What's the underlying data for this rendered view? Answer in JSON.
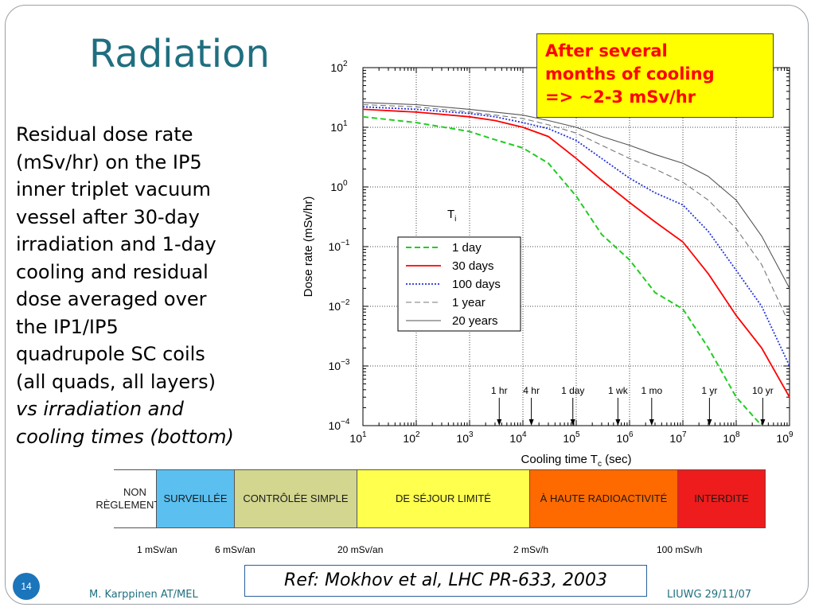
{
  "slide": {
    "title": "Radiation",
    "body_lines": [
      "Residual dose rate",
      "(mSv/hr) on the IP5",
      "inner triplet vacuum",
      "vessel after 30-day",
      "irradiation and 1-day",
      "cooling and residual",
      "dose averaged over",
      "the IP1/IP5",
      "quadrupole SC coils",
      "(all quads, all layers)"
    ],
    "body_italic_lines": [
      "vs irradiation and",
      "cooling times (bottom)"
    ],
    "callout_lines": [
      "After several",
      "months of cooling",
      "=> ~2-3 mSv/hr"
    ],
    "reference": "Ref: Mokhov et al, LHC PR-633, 2003",
    "page_number": "14",
    "footer_left": "M. Karppinen AT/MEL",
    "footer_right": "LIUWG 29/11/07",
    "colors": {
      "title": "#1f6f80",
      "callout_bg": "#ffff00",
      "callout_text": "#ff0000"
    }
  },
  "zones": [
    {
      "label_lines": [
        "NON",
        "RÈGLEMENTÉE"
      ],
      "color": "#ffffff"
    },
    {
      "label_lines": [
        "SURVEILLÉE"
      ],
      "color": "#5bc0f0"
    },
    {
      "label_lines": [
        "CONTRÔLÉE SIMPLE"
      ],
      "color": "#d2d68f"
    },
    {
      "label_lines": [
        "DE SÉJOUR LIMITÉ"
      ],
      "color": "#ffff4d"
    },
    {
      "label_lines": [
        "À HAUTE RADIOACTIVITÉ"
      ],
      "color": "#ff6a00"
    },
    {
      "label_lines": [
        "INTERDITE"
      ],
      "color": "#ee1c1c"
    }
  ],
  "thresholds": [
    "1 mSv/an",
    "6 mSv/an",
    "20 mSv/an",
    "2 mSv/h",
    "100 mSv/h"
  ],
  "chart_data": {
    "type": "line",
    "xlabel_main": "Cooling time T",
    "xlabel_sub": "c",
    "xlabel_unit": " (sec)",
    "ylabel": "Dose rate (mSv/hr)",
    "x_scale": "log",
    "y_scale": "log",
    "xlim": [
      10,
      1000000000
    ],
    "ylim": [
      0.0001,
      100
    ],
    "grid": true,
    "x_ticks": [
      {
        "base": "10",
        "exp": "1"
      },
      {
        "base": "10",
        "exp": "2"
      },
      {
        "base": "10",
        "exp": "3"
      },
      {
        "base": "10",
        "exp": "4"
      },
      {
        "base": "10",
        "exp": "5"
      },
      {
        "base": "10",
        "exp": "6"
      },
      {
        "base": "10",
        "exp": "7"
      },
      {
        "base": "10",
        "exp": "8"
      },
      {
        "base": "10",
        "exp": "9"
      }
    ],
    "y_ticks": [
      {
        "base": "10",
        "exp": "−4"
      },
      {
        "base": "10",
        "exp": "−3"
      },
      {
        "base": "10",
        "exp": "−2"
      },
      {
        "base": "10",
        "exp": "−1"
      },
      {
        "base": "10",
        "exp": "0"
      },
      {
        "base": "10",
        "exp": "1"
      },
      {
        "base": "10",
        "exp": "2"
      }
    ],
    "legend_title_main": "T",
    "legend_title_sub": "i",
    "legend_position": "center",
    "series": [
      {
        "name": "1 day",
        "color": "#22cc22",
        "dash": "dashed",
        "x": [
          10,
          100,
          1000,
          3000,
          10000,
          30000,
          100000,
          300000,
          1000000,
          3000000,
          10000000,
          30000000,
          100000000,
          300000000
        ],
        "y": [
          15,
          12,
          8.5,
          6.2,
          4.5,
          2.5,
          0.7,
          0.16,
          0.06,
          0.017,
          0.009,
          0.002,
          0.0003,
          0.0001
        ]
      },
      {
        "name": "30 days",
        "color": "#ff0000",
        "dash": "solid",
        "x": [
          10,
          100,
          1000,
          3000,
          10000,
          30000,
          100000,
          300000,
          1000000,
          3000000,
          10000000,
          30000000,
          100000000,
          300000000,
          1000000000
        ],
        "y": [
          20,
          18,
          15,
          13,
          10,
          7,
          3,
          1.3,
          0.55,
          0.26,
          0.12,
          0.035,
          0.007,
          0.002,
          0.0003
        ]
      },
      {
        "name": "100 days",
        "color": "#2233dd",
        "dash": "dotted",
        "x": [
          10,
          100,
          1000,
          3000,
          10000,
          30000,
          100000,
          300000,
          1000000,
          3000000,
          10000000,
          30000000,
          100000000,
          300000000,
          1000000000
        ],
        "y": [
          22,
          20,
          17,
          15,
          12,
          9.5,
          6,
          3,
          1.4,
          0.8,
          0.5,
          0.18,
          0.04,
          0.01,
          0.001
        ]
      },
      {
        "name": "1 year",
        "color": "#777777",
        "dash": "dashed",
        "x": [
          10,
          100,
          1000,
          3000,
          10000,
          30000,
          100000,
          300000,
          1000000,
          3000000,
          10000000,
          30000000,
          100000000,
          300000000,
          1000000000
        ],
        "y": [
          24,
          22,
          18,
          16,
          14,
          11,
          8,
          5,
          3,
          2,
          1.2,
          0.6,
          0.2,
          0.05,
          0.005
        ]
      },
      {
        "name": "20 years",
        "color": "#555555",
        "dash": "solid",
        "x": [
          10,
          100,
          1000,
          3000,
          10000,
          30000,
          100000,
          300000,
          1000000,
          3000000,
          10000000,
          30000000,
          100000000,
          300000000,
          1000000000
        ],
        "y": [
          26,
          24,
          20,
          18,
          16,
          13,
          10,
          7,
          5,
          3.5,
          2.5,
          1.5,
          0.6,
          0.15,
          0.02
        ]
      }
    ],
    "annotations": [
      {
        "label": "1 hr",
        "x": 3600
      },
      {
        "label": "4 hr",
        "x": 14400
      },
      {
        "label": "1 day",
        "x": 86400
      },
      {
        "label": "1 wk",
        "x": 604800
      },
      {
        "label": "1 mo",
        "x": 2600000
      },
      {
        "label": "1 yr",
        "x": 31500000
      },
      {
        "label": "10 yr",
        "x": 315000000
      }
    ]
  }
}
